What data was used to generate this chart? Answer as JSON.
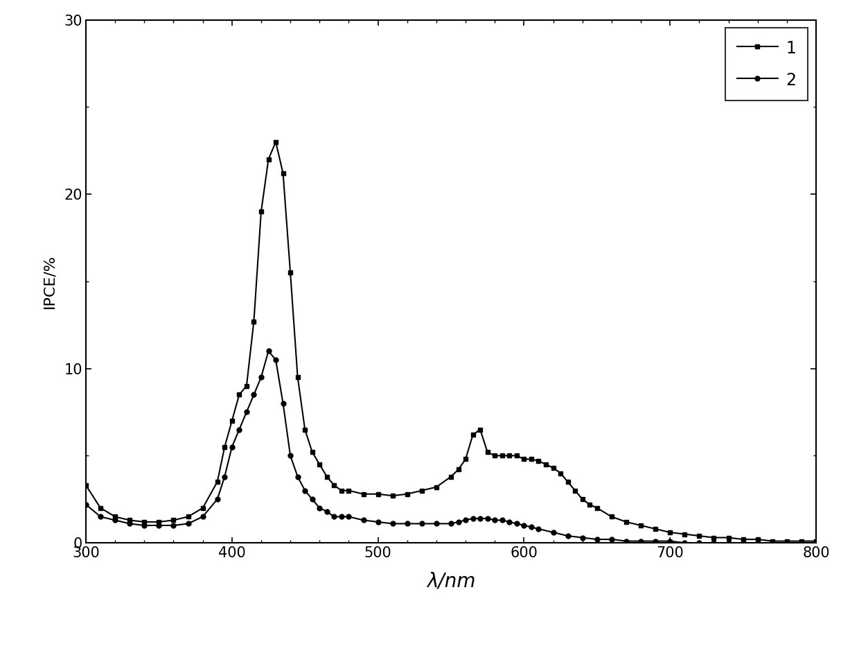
{
  "title": "",
  "xlabel": "λ/nm",
  "ylabel": "IPCE/%",
  "xlim": [
    300,
    800
  ],
  "ylim": [
    0,
    30
  ],
  "yticks": [
    0,
    10,
    20,
    30
  ],
  "xticks": [
    300,
    400,
    500,
    600,
    700,
    800
  ],
  "series1_x": [
    300,
    310,
    320,
    330,
    340,
    350,
    360,
    370,
    380,
    390,
    395,
    400,
    405,
    410,
    415,
    420,
    425,
    430,
    435,
    440,
    445,
    450,
    455,
    460,
    465,
    470,
    475,
    480,
    490,
    500,
    510,
    520,
    530,
    540,
    550,
    555,
    560,
    565,
    570,
    575,
    580,
    585,
    590,
    595,
    600,
    605,
    610,
    615,
    620,
    625,
    630,
    635,
    640,
    645,
    650,
    660,
    670,
    680,
    690,
    700,
    710,
    720,
    730,
    740,
    750,
    760,
    770,
    780,
    790,
    800
  ],
  "series1_y": [
    3.3,
    2.0,
    1.5,
    1.3,
    1.2,
    1.2,
    1.3,
    1.5,
    2.0,
    3.5,
    5.5,
    7.0,
    8.5,
    9.0,
    12.7,
    19.0,
    22.0,
    23.0,
    21.2,
    15.5,
    9.5,
    6.5,
    5.2,
    4.5,
    3.8,
    3.3,
    3.0,
    3.0,
    2.8,
    2.8,
    2.7,
    2.8,
    3.0,
    3.2,
    3.8,
    4.2,
    4.8,
    6.2,
    6.5,
    5.2,
    5.0,
    5.0,
    5.0,
    5.0,
    4.8,
    4.8,
    4.7,
    4.5,
    4.3,
    4.0,
    3.5,
    3.0,
    2.5,
    2.2,
    2.0,
    1.5,
    1.2,
    1.0,
    0.8,
    0.6,
    0.5,
    0.4,
    0.3,
    0.3,
    0.2,
    0.2,
    0.1,
    0.1,
    0.1,
    0.1
  ],
  "series2_x": [
    300,
    310,
    320,
    330,
    340,
    350,
    360,
    370,
    380,
    390,
    395,
    400,
    405,
    410,
    415,
    420,
    425,
    430,
    435,
    440,
    445,
    450,
    455,
    460,
    465,
    470,
    475,
    480,
    490,
    500,
    510,
    520,
    530,
    540,
    550,
    555,
    560,
    565,
    570,
    575,
    580,
    585,
    590,
    595,
    600,
    605,
    610,
    620,
    630,
    640,
    650,
    660,
    670,
    680,
    690,
    700,
    710,
    720,
    730,
    740,
    750,
    760,
    770,
    780,
    790,
    800
  ],
  "series2_y": [
    2.2,
    1.5,
    1.3,
    1.1,
    1.0,
    1.0,
    1.0,
    1.1,
    1.5,
    2.5,
    3.8,
    5.5,
    6.5,
    7.5,
    8.5,
    9.5,
    11.0,
    10.5,
    8.0,
    5.0,
    3.8,
    3.0,
    2.5,
    2.0,
    1.8,
    1.5,
    1.5,
    1.5,
    1.3,
    1.2,
    1.1,
    1.1,
    1.1,
    1.1,
    1.1,
    1.2,
    1.3,
    1.4,
    1.4,
    1.4,
    1.3,
    1.3,
    1.2,
    1.1,
    1.0,
    0.9,
    0.8,
    0.6,
    0.4,
    0.3,
    0.2,
    0.2,
    0.1,
    0.1,
    0.1,
    0.1,
    0.0,
    0.0,
    0.0,
    0.0,
    0.0,
    0.0,
    0.0,
    0.0,
    0.0,
    0.0
  ],
  "line_color": "#000000",
  "marker1": "s",
  "marker2": "o",
  "markersize": 5,
  "linewidth": 1.5,
  "legend_labels": [
    "1",
    "2"
  ],
  "legend_loc": "upper right",
  "background_color": "#ffffff",
  "tick_direction": "in"
}
